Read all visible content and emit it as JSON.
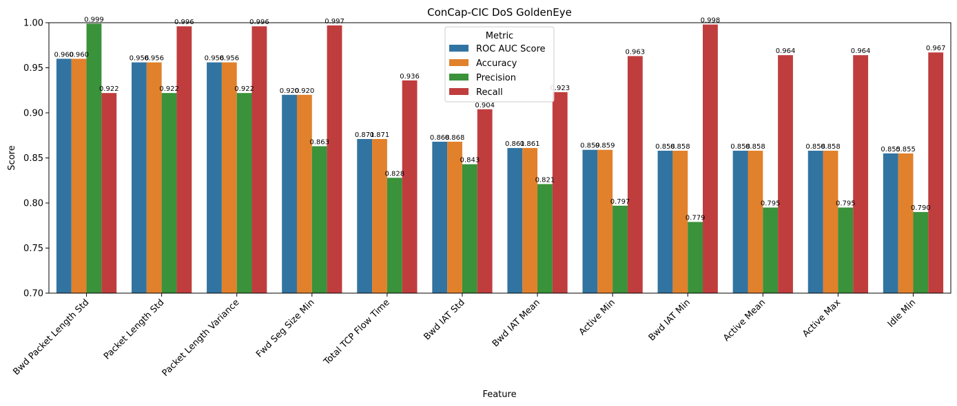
{
  "chart_data": {
    "type": "bar",
    "title": "ConCap-CIC DoS GoldenEye",
    "xlabel": "Feature",
    "ylabel": "Score",
    "ylim": [
      0.7,
      1.0
    ],
    "yticks": [
      "0.70",
      "0.75",
      "0.80",
      "0.85",
      "0.90",
      "0.95",
      "1.00"
    ],
    "grid": false,
    "legend": {
      "title": "Metric",
      "placement": "top-center"
    },
    "categories": [
      "Bwd Packet Length Std",
      "Packet Length Std",
      "Packet Length Variance",
      "Fwd Seg Size Min",
      "Total TCP Flow Time",
      "Bwd IAT Std",
      "Bwd IAT Mean",
      "Active Min",
      "Bwd IAT Min",
      "Active Mean",
      "Active Max",
      "Idle Min"
    ],
    "series": [
      {
        "name": "ROC AUC Score",
        "color": "#3274a1",
        "values": [
          0.96,
          0.956,
          0.956,
          0.92,
          0.871,
          0.868,
          0.861,
          0.859,
          0.858,
          0.858,
          0.858,
          0.855
        ],
        "labels": [
          "0.960",
          "0.956",
          "0.956",
          "0.920",
          "0.871",
          "0.868",
          "0.861",
          "0.859",
          "0.858",
          "0.858",
          "0.858",
          "0.855"
        ]
      },
      {
        "name": "Accuracy",
        "color": "#e1812c",
        "values": [
          0.96,
          0.956,
          0.956,
          0.92,
          0.871,
          0.868,
          0.861,
          0.859,
          0.858,
          0.858,
          0.858,
          0.855
        ],
        "labels": [
          "0.960",
          "0.956",
          "0.956",
          "0.920",
          "0.871",
          "0.868",
          "0.861",
          "0.859",
          "0.858",
          "0.858",
          "0.858",
          "0.855"
        ]
      },
      {
        "name": "Precision",
        "color": "#3a923a",
        "values": [
          0.999,
          0.922,
          0.922,
          0.863,
          0.828,
          0.843,
          0.821,
          0.797,
          0.779,
          0.795,
          0.795,
          0.79
        ],
        "labels": [
          "0.999",
          "0.922",
          "0.922",
          "0.863",
          "0.828",
          "0.843",
          "0.821",
          "0.797",
          "0.779",
          "0.795",
          "0.795",
          "0.790"
        ]
      },
      {
        "name": "Recall",
        "color": "#c03d3e",
        "values": [
          0.922,
          0.996,
          0.996,
          0.997,
          0.936,
          0.904,
          0.923,
          0.963,
          0.998,
          0.964,
          0.964,
          0.967
        ],
        "labels": [
          "0.922",
          "0.996",
          "0.996",
          "0.997",
          "0.936",
          "0.904",
          "0.923",
          "0.963",
          "0.998",
          "0.964",
          "0.964",
          "0.967"
        ]
      }
    ]
  }
}
